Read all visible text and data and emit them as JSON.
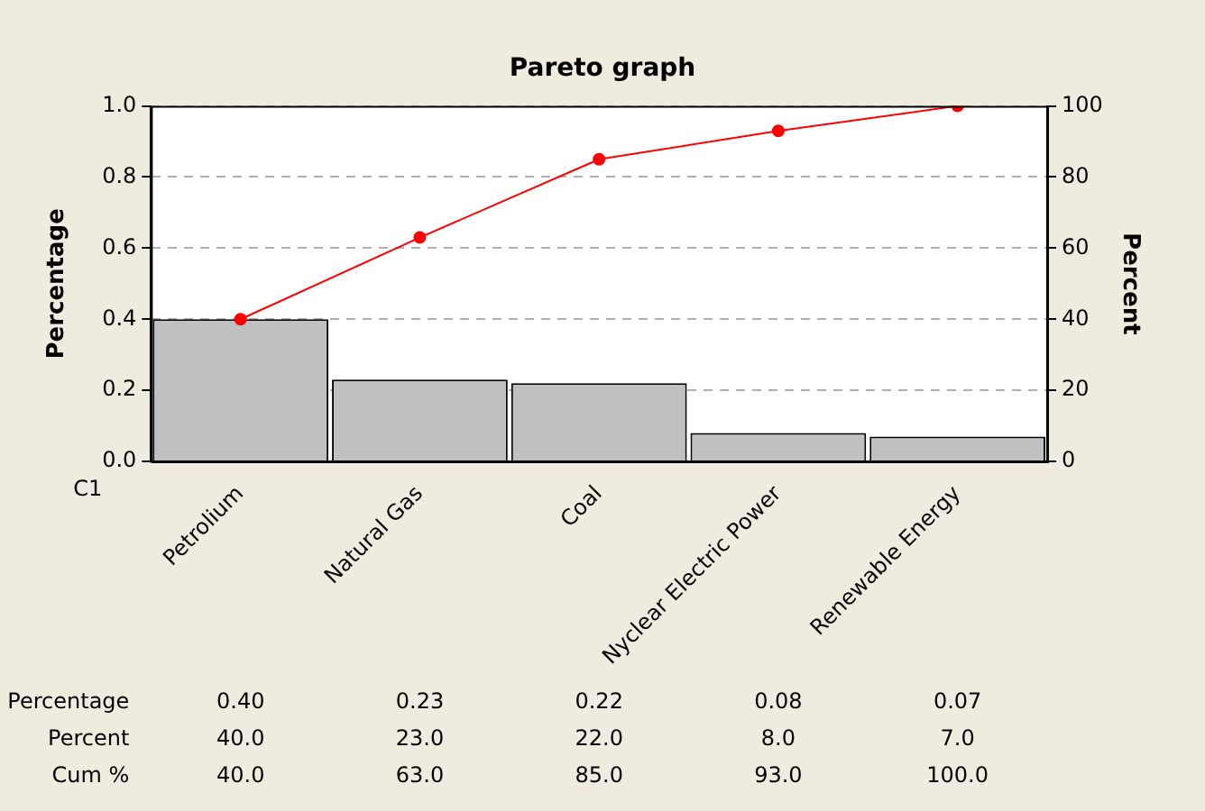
{
  "chart_data": {
    "type": "bar",
    "title": "Pareto graph",
    "xlabel": "C1",
    "ylabel": "Percentage",
    "y2label": "Percent",
    "categories": [
      "Petrolium",
      "Natural Gas",
      "Coal",
      "Nyclear Electric Power",
      "Renewable Energy"
    ],
    "series": [
      {
        "color": "#c0c0c0",
        "values": [
          0.4,
          0.23,
          0.22,
          0.08,
          0.07
        ],
        "value_labels": [
          "0.40",
          "0.23",
          "0.22",
          "0.08",
          "0.07"
        ]
      },
      {
        "type": "line",
        "axis": "y2",
        "color": "#ff0000",
        "values": [
          40,
          63,
          85,
          93,
          100
        ],
        "value_labels": [
          "40.0",
          "63.0",
          "85.0",
          "93.0",
          "100.0"
        ]
      }
    ],
    "annotations": [
      "Percentage",
      "Percent",
      "Cum %",
      "40.0",
      "23.0",
      "22.0",
      "8.0",
      "7.0"
    ],
    "ylim": [
      0,
      1
    ],
    "yticks": [
      {
        "value": 0,
        "label": "0.0"
      },
      {
        "value": 0.2,
        "label": "0.2"
      },
      {
        "value": 0.4,
        "label": "0.4"
      },
      {
        "value": 0.6,
        "label": "0.6"
      },
      {
        "value": 0.8,
        "label": "0.8"
      },
      {
        "value": 1,
        "label": "1.0"
      }
    ],
    "y2lim": [
      0,
      100
    ],
    "y2ticks": [
      0,
      20,
      40,
      60,
      80,
      100
    ],
    "grid": "y",
    "legend": false,
    "marker": "circle",
    "line_style": "solid"
  }
}
